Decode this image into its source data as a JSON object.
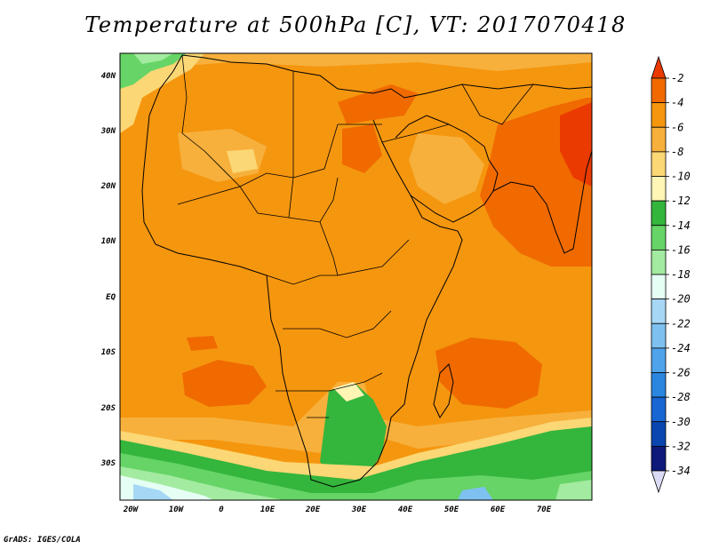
{
  "title": "Temperature at 500hPa [C], VT: 2017070418",
  "footer": "GrADS: IGES/COLA",
  "map": {
    "lat_labels": [
      "40N",
      "30N",
      "20N",
      "10N",
      "EQ",
      "10S",
      "20S",
      "30S"
    ],
    "lon_labels": [
      "20W",
      "10W",
      "0",
      "10E",
      "20E",
      "30E",
      "40E",
      "50E",
      "60E",
      "70E"
    ]
  },
  "colorbar": {
    "labels": [
      "-2",
      "-4",
      "-6",
      "-8",
      "-10",
      "-12",
      "-14",
      "-16",
      "-18",
      "-20",
      "-22",
      "-24",
      "-26",
      "-28",
      "-30",
      "-32",
      "-34"
    ],
    "colors": [
      "#ea3a00",
      "#f06a00",
      "#f5960f",
      "#f7b03c",
      "#fbd775",
      "#fff5b4",
      "#34b53c",
      "#66d466",
      "#a2eba0",
      "#e6fff4",
      "#a6d8f5",
      "#7ec1f0",
      "#4fa3ea",
      "#2b86df",
      "#1766d2",
      "#0a46b0",
      "#0d1a7a",
      "#dadcf5"
    ]
  }
}
